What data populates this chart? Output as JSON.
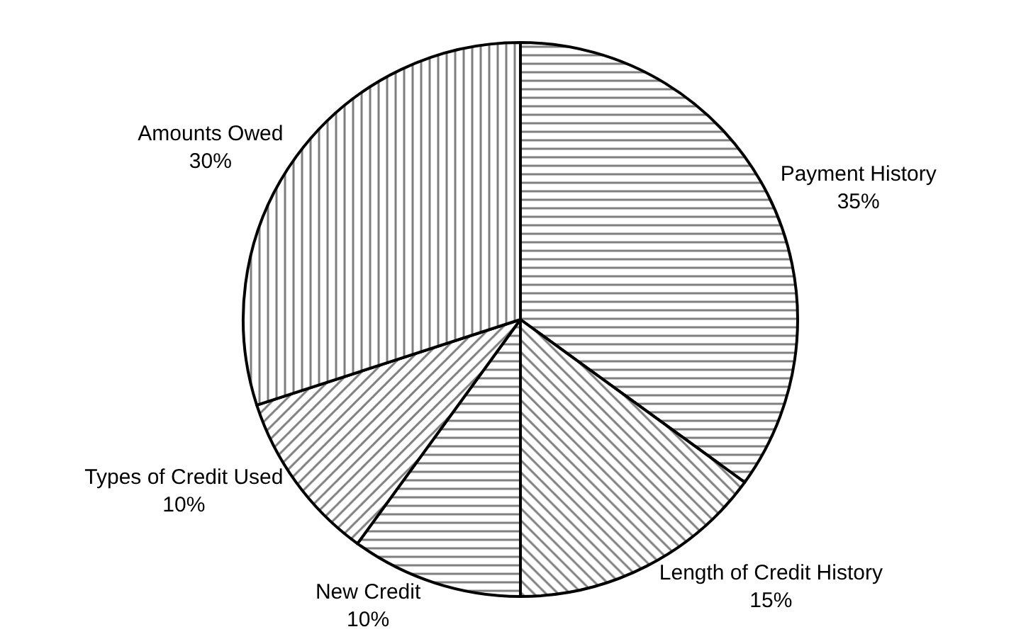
{
  "chart_data": {
    "type": "pie",
    "categories": [
      "Payment History",
      "Length of Credit History",
      "New Credit",
      "Types of Credit Used",
      "Amounts Owed"
    ],
    "values": [
      35,
      15,
      10,
      10,
      30
    ],
    "value_labels": [
      "35%",
      "15%",
      "10%",
      "10%",
      "30%"
    ],
    "colors": [
      "#000000",
      "#000000",
      "#000000",
      "#000000",
      "#000000"
    ],
    "legend": false
  }
}
